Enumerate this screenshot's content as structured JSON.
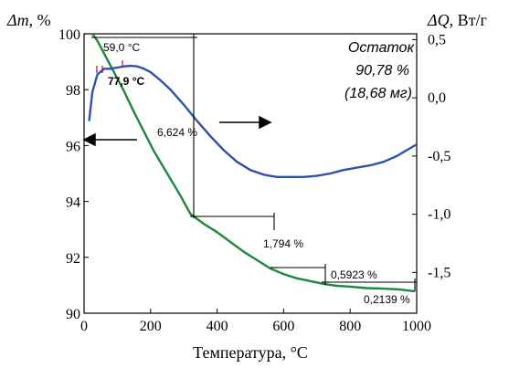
{
  "chart_data": {
    "type": "line",
    "left_axis_label_symbol": "Δm",
    "left_axis_label_unit": ", %",
    "right_axis_label_symbol": "ΔQ",
    "right_axis_label_unit": ", Вт/г",
    "xlabel": "Температура, °C",
    "xlim": [
      0,
      1000
    ],
    "x_ticks": [
      0,
      200,
      400,
      600,
      800,
      1000
    ],
    "y_left_lim": [
      90,
      100
    ],
    "y_left_ticks": [
      90,
      92,
      94,
      96,
      98,
      100
    ],
    "y_right_lim": [
      -1.85,
      0.55
    ],
    "y_right_ticks": [
      "0,5",
      "0,0",
      "-0,5",
      "-1,0",
      "-1,5"
    ],
    "y_right_tick_values": [
      0.5,
      0.0,
      -0.5,
      -1.0,
      -1.5
    ],
    "series": [
      {
        "axis": "left",
        "color": "#1a8a3c",
        "x": [
          25,
          40,
          60,
          80,
          100,
          120,
          150,
          180,
          210,
          250,
          290,
          320,
          360,
          400,
          440,
          480,
          520,
          560,
          600,
          640,
          680,
          720,
          760,
          800,
          850,
          900,
          950,
          995
        ],
        "y": [
          100.0,
          99.75,
          99.3,
          98.85,
          98.4,
          97.95,
          97.2,
          96.5,
          95.8,
          95.0,
          94.2,
          93.55,
          93.2,
          92.9,
          92.55,
          92.2,
          91.9,
          91.6,
          91.4,
          91.25,
          91.15,
          91.05,
          90.98,
          90.95,
          90.9,
          90.88,
          90.85,
          90.78
        ]
      },
      {
        "axis": "right",
        "color": "#3050b0",
        "x": [
          15,
          25,
          40,
          60,
          80,
          100,
          120,
          140,
          160,
          180,
          200,
          230,
          260,
          300,
          340,
          380,
          420,
          460,
          500,
          540,
          580,
          620,
          660,
          700,
          740,
          780,
          820,
          860,
          900,
          940,
          970,
          1000
        ],
        "y": [
          -0.2,
          0.05,
          0.2,
          0.25,
          0.25,
          0.26,
          0.27,
          0.275,
          0.27,
          0.25,
          0.22,
          0.15,
          0.07,
          -0.06,
          -0.2,
          -0.33,
          -0.45,
          -0.55,
          -0.62,
          -0.66,
          -0.68,
          -0.68,
          -0.68,
          -0.67,
          -0.65,
          -0.62,
          -0.6,
          -0.58,
          -0.55,
          -0.5,
          -0.45,
          -0.4
        ]
      }
    ],
    "annotations": {
      "residue_title": "Остаток",
      "residue_percent": "90,78 %",
      "residue_mass": "(18,68 мг)",
      "onset_1": "59,0 °C",
      "onset_2": "77,9 °C",
      "loss_1": "6,624 %",
      "loss_2": "1,794 %",
      "loss_3": "0,5923 %",
      "loss_4": "0,2139 %"
    }
  }
}
